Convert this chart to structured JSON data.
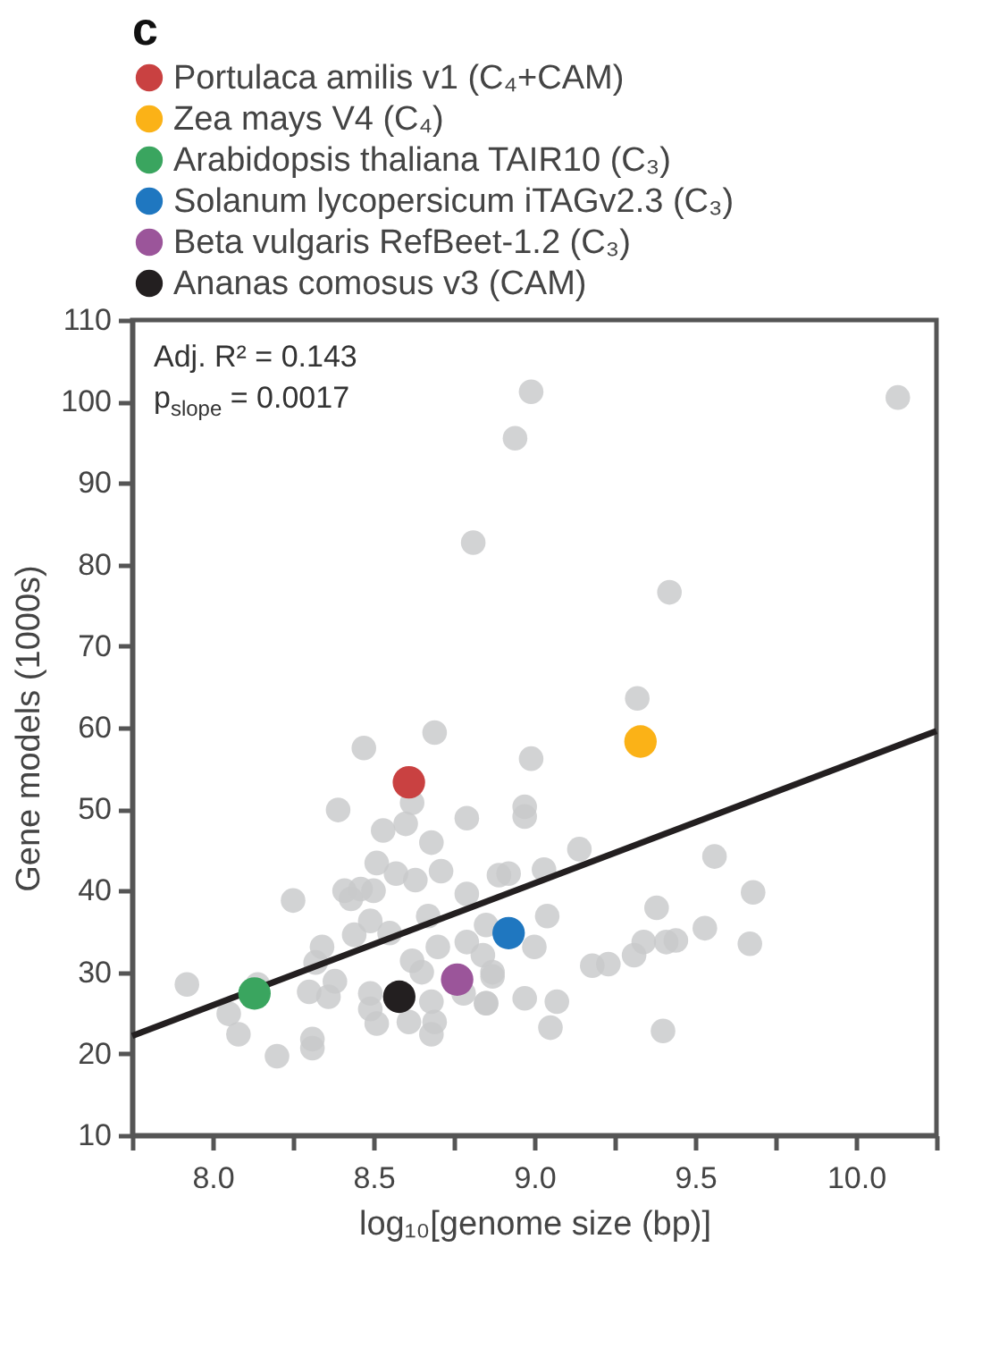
{
  "chart_data": {
    "type": "scatter",
    "title": "c",
    "xlabel": "log₁₀[genome size (bp)]",
    "ylabel": "Gene models (1000s)",
    "annotations": [
      "Adj. R² = 0.143",
      "p$_{slope}$ = 0.0017"
    ],
    "xlim": [
      7.75,
      10.25
    ],
    "xticks": [
      {
        "value": 7.75,
        "label": null
      },
      {
        "value": 8,
        "label": "8.0"
      },
      {
        "value": 8.25,
        "label": null
      },
      {
        "value": 8.5,
        "label": "8.5"
      },
      {
        "value": 8.75,
        "label": null
      },
      {
        "value": 9,
        "label": "9.0"
      },
      {
        "value": 9.25,
        "label": null
      },
      {
        "value": 9.5,
        "label": "9.5"
      },
      {
        "value": 9.75,
        "label": null
      },
      {
        "value": 10,
        "label": "10.0"
      },
      {
        "value": 10.25,
        "label": null
      }
    ],
    "ylim": [
      10,
      110
    ],
    "yticks": [
      10,
      20,
      30,
      40,
      50,
      60,
      70,
      80,
      90,
      100,
      110
    ],
    "grid": false,
    "legend": "top left",
    "marker": "circle",
    "series": [
      {
        "color": "#c8c9cb",
        "x": [
          7.92,
          8.05,
          8.08,
          8.14,
          8.2,
          8.25,
          8.3,
          8.31,
          8.31,
          8.34,
          8.32,
          8.36,
          8.38,
          8.39,
          8.41,
          8.43,
          8.44,
          8.46,
          8.49,
          8.49,
          8.5,
          8.51,
          8.49,
          8.51,
          8.53,
          8.55,
          8.57,
          8.6,
          8.62,
          8.63,
          8.62,
          8.61,
          8.65,
          8.67,
          8.68,
          8.7,
          8.71,
          8.68,
          8.69,
          8.68,
          8.79,
          8.79,
          8.78,
          8.79,
          8.84,
          8.85,
          8.87,
          8.89,
          8.85,
          8.47,
          8.69,
          8.81,
          8.99,
          8.94,
          10.13,
          9.42,
          9.32,
          8.99,
          8.97,
          8.97,
          9.14,
          9.03,
          8.92,
          9.56,
          9.68,
          9.38,
          9.04,
          9.0,
          9.53,
          9.67,
          9.34,
          9.41,
          9.44,
          9.31,
          9.23,
          9.18,
          8.87,
          8.97,
          9.07,
          8.85,
          9.05,
          9.4
        ],
        "values": [
          28.5,
          24.9,
          22.4,
          28.5,
          19.7,
          38.8,
          27.6,
          21.8,
          20.7,
          33.1,
          31.2,
          27.0,
          28.9,
          49.9,
          40.0,
          39.0,
          34.6,
          40.2,
          27.4,
          25.5,
          40.0,
          43.4,
          36.3,
          23.7,
          47.4,
          34.8,
          42.1,
          48.2,
          50.8,
          41.3,
          31.4,
          23.9,
          30.0,
          36.9,
          45.9,
          33.1,
          42.4,
          26.4,
          23.9,
          22.4,
          48.9,
          33.7,
          27.4,
          39.6,
          32.1,
          26.2,
          29.5,
          41.9,
          35.8,
          57.5,
          59.4,
          82.7,
          101.2,
          95.5,
          100.5,
          76.6,
          63.6,
          56.2,
          50.3,
          49.1,
          45.1,
          42.6,
          42.1,
          44.2,
          39.8,
          37.9,
          36.9,
          33.1,
          35.4,
          33.5,
          33.7,
          33.7,
          33.9,
          32.1,
          31.0,
          30.8,
          30.0,
          26.8,
          26.4,
          26.2,
          23.2,
          22.8
        ]
      },
      {
        "type": "line",
        "marker": "none",
        "color": "#231f20",
        "x": [
          7.75,
          10.25
        ],
        "values": [
          22.2,
          59.6
        ]
      },
      {
        "name": "Portulaca amilis v1 (C₄+CAM)",
        "color": "#c94141",
        "x": [
          8.61
        ],
        "values": [
          53.3
        ]
      },
      {
        "name": "Zea mays V4 (C₄)",
        "color": "#fbb217",
        "x": [
          9.33
        ],
        "values": [
          58.3
        ]
      },
      {
        "name": "Arabidopsis thaliana  TAIR10 (C₃)",
        "color": "#3aa55f",
        "x": [
          8.13
        ],
        "values": [
          27.4
        ]
      },
      {
        "name": "Solanum lycopersicum iTAGv2.3 (C₃)",
        "color": "#1f77c0",
        "x": [
          8.92
        ],
        "values": [
          34.8
        ]
      },
      {
        "name": "Beta vulgaris RefBeet-1.2 (C₃)",
        "color": "#9b559a",
        "x": [
          8.76
        ],
        "values": [
          29.1
        ]
      },
      {
        "name": "Ananas comosus v3 (CAM)",
        "color": "#231f20",
        "x": [
          8.58
        ],
        "values": [
          27.0
        ]
      }
    ]
  }
}
